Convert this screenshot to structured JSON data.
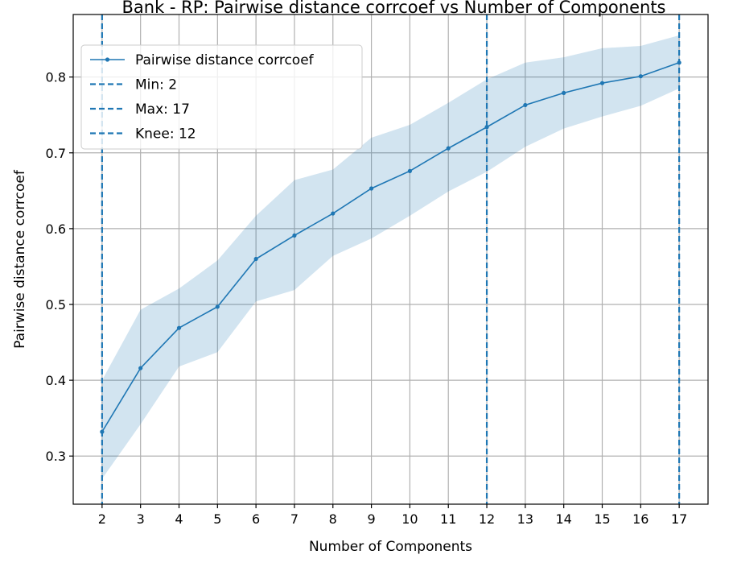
{
  "chart_data": {
    "type": "line",
    "title": "Bank - RP: Pairwise distance corrcoef vs Number of Components",
    "xlabel": "Number of Components",
    "ylabel": "Pairwise distance corrcoef",
    "x": [
      2,
      3,
      4,
      5,
      6,
      7,
      8,
      9,
      10,
      11,
      12,
      13,
      14,
      15,
      16,
      17
    ],
    "series": [
      {
        "name": "Pairwise distance corrcoef",
        "values": [
          0.332,
          0.416,
          0.469,
          0.497,
          0.56,
          0.591,
          0.62,
          0.653,
          0.676,
          0.706,
          0.734,
          0.763,
          0.779,
          0.792,
          0.801,
          0.819
        ],
        "band_upper": [
          0.4,
          0.493,
          0.521,
          0.558,
          0.617,
          0.664,
          0.678,
          0.72,
          0.737,
          0.766,
          0.797,
          0.819,
          0.826,
          0.838,
          0.841,
          0.855
        ],
        "band_lower": [
          0.27,
          0.342,
          0.418,
          0.437,
          0.504,
          0.519,
          0.564,
          0.587,
          0.617,
          0.649,
          0.675,
          0.708,
          0.732,
          0.748,
          0.762,
          0.785
        ],
        "color": "#1f77b4",
        "band_color": "#1f77b4"
      }
    ],
    "vlines": [
      {
        "label": "Min: 2",
        "x": 2
      },
      {
        "label": "Max: 17",
        "x": 17
      },
      {
        "label": "Knee: 12",
        "x": 12
      }
    ],
    "xticks": [
      2,
      3,
      4,
      5,
      6,
      7,
      8,
      9,
      10,
      11,
      12,
      13,
      14,
      15,
      16,
      17
    ],
    "yticks": [
      0.3,
      0.4,
      0.5,
      0.6,
      0.7,
      0.8
    ],
    "xlim": [
      1.25,
      17.75
    ],
    "ylim": [
      0.2365,
      0.8825
    ],
    "grid": true,
    "legend_position": "top-left"
  }
}
